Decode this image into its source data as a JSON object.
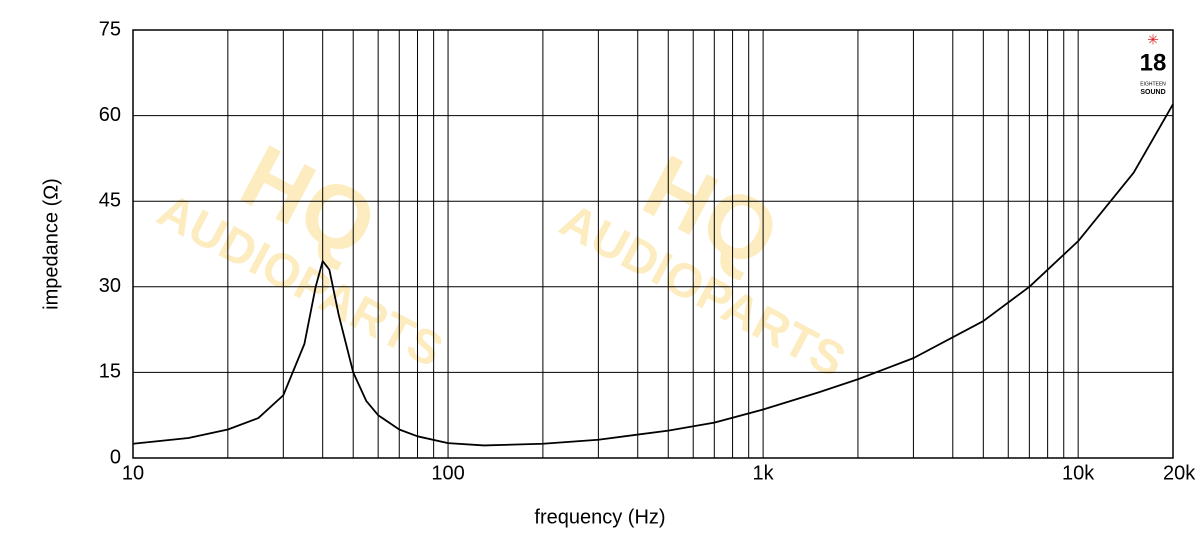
{
  "chart_data": {
    "type": "line",
    "xlabel": "frequency (Hz)",
    "ylabel": "impedance (Ω)",
    "x": [
      10,
      15,
      20,
      25,
      30,
      35,
      38,
      40,
      42,
      45,
      50,
      55,
      60,
      70,
      80,
      100,
      130,
      200,
      300,
      500,
      700,
      1000,
      1500,
      2000,
      3000,
      5000,
      7000,
      10000,
      15000,
      20000
    ],
    "series": [
      {
        "name": "impedance",
        "color": "#000000",
        "values": [
          2.5,
          3.5,
          5,
          7,
          11,
          20,
          30,
          34.5,
          33,
          25,
          15,
          10,
          7.5,
          5,
          3.8,
          2.6,
          2.2,
          2.5,
          3.2,
          4.8,
          6.2,
          8.5,
          11.5,
          13.8,
          17.5,
          24,
          30,
          38,
          50,
          62
        ]
      }
    ],
    "xlim": [
      10,
      20000
    ],
    "ylim": [
      0,
      75
    ],
    "xticks": [
      10,
      100,
      {
        "value": 1000,
        "label": "1k"
      },
      {
        "value": 10000,
        "label": "10k"
      },
      {
        "value": 20000,
        "label": "20k"
      }
    ],
    "xgrid_minor": [
      20,
      30,
      40,
      50,
      60,
      70,
      80,
      90,
      200,
      300,
      400,
      500,
      600,
      700,
      800,
      900,
      2000,
      3000,
      4000,
      5000,
      6000,
      7000,
      8000,
      9000
    ],
    "yticks": [
      0,
      15,
      30,
      45,
      60,
      75
    ],
    "log_x": true,
    "grid": true,
    "logo": {
      "number": "18",
      "line1": "EIGHTEEN",
      "line2": "SOUND"
    },
    "watermark": {
      "big": "HQ",
      "small": "AUDIOPARTS"
    }
  }
}
